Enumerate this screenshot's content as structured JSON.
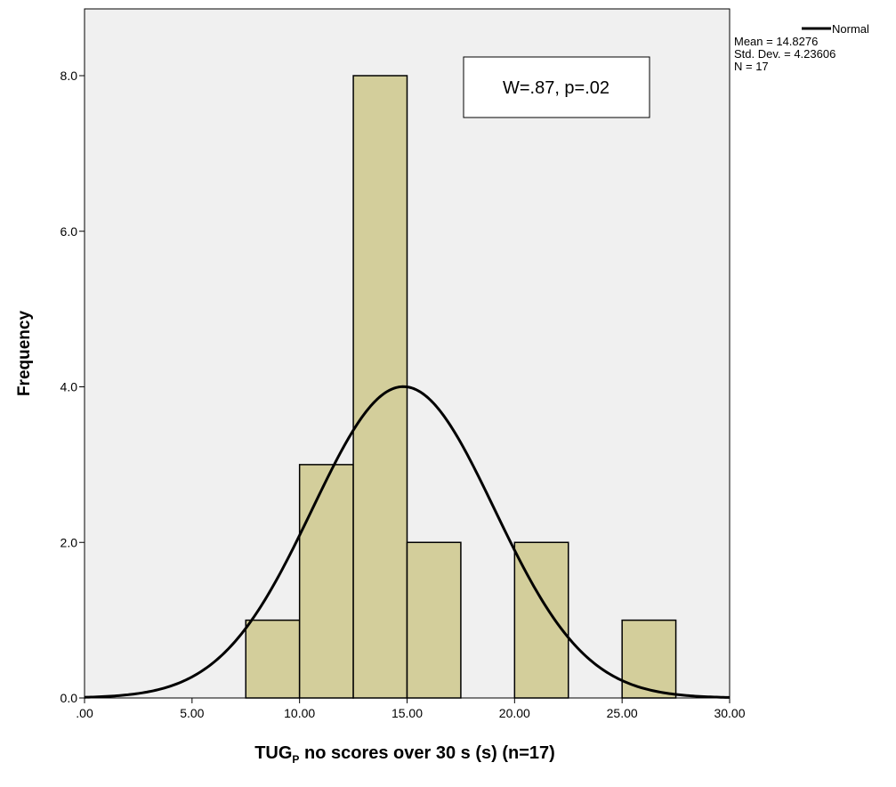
{
  "chart_data": {
    "type": "bar",
    "subtype": "histogram",
    "x_bins": [
      {
        "from": 7.5,
        "to": 10.0,
        "count": 1
      },
      {
        "from": 10.0,
        "to": 12.5,
        "count": 3
      },
      {
        "from": 12.5,
        "to": 15.0,
        "count": 8
      },
      {
        "from": 15.0,
        "to": 17.5,
        "count": 2
      },
      {
        "from": 17.5,
        "to": 20.0,
        "count": 0
      },
      {
        "from": 20.0,
        "to": 22.5,
        "count": 2
      },
      {
        "from": 22.5,
        "to": 25.0,
        "count": 0
      },
      {
        "from": 25.0,
        "to": 27.5,
        "count": 1
      }
    ],
    "xlim": [
      0,
      30
    ],
    "ylim": [
      0,
      8.8
    ],
    "x_ticks": [
      0,
      5,
      10,
      15,
      20,
      25,
      30
    ],
    "x_tick_labels": [
      ".00",
      "5.00",
      "10.00",
      "15.00",
      "20.00",
      "25.00",
      "30.00"
    ],
    "y_ticks": [
      0,
      2,
      4,
      6,
      8
    ],
    "y_tick_labels": [
      "0.0",
      "2.0",
      "4.0",
      "6.0",
      "8.0"
    ],
    "xlabel_main": "TUG",
    "xlabel_subscript": "P",
    "xlabel_rest": " no scores over 30 s (s) (n=17)",
    "ylabel": "Frequency",
    "normal_curve": {
      "mean": 14.8276,
      "std": 4.23606,
      "n": 17,
      "bin_width": 2.5
    },
    "legend": {
      "position": "top-right",
      "entries": [
        "Normal",
        "Mean = 14.8276",
        "Std. Dev. = 4.23606",
        "N = 17"
      ]
    },
    "annotation": "W=.87, p=.02",
    "grid": false,
    "colors": {
      "plot_background": "#f0f0f0",
      "bar_fill": "#d3ce9b",
      "bar_stroke": "#000000",
      "curve": "#000000"
    }
  }
}
